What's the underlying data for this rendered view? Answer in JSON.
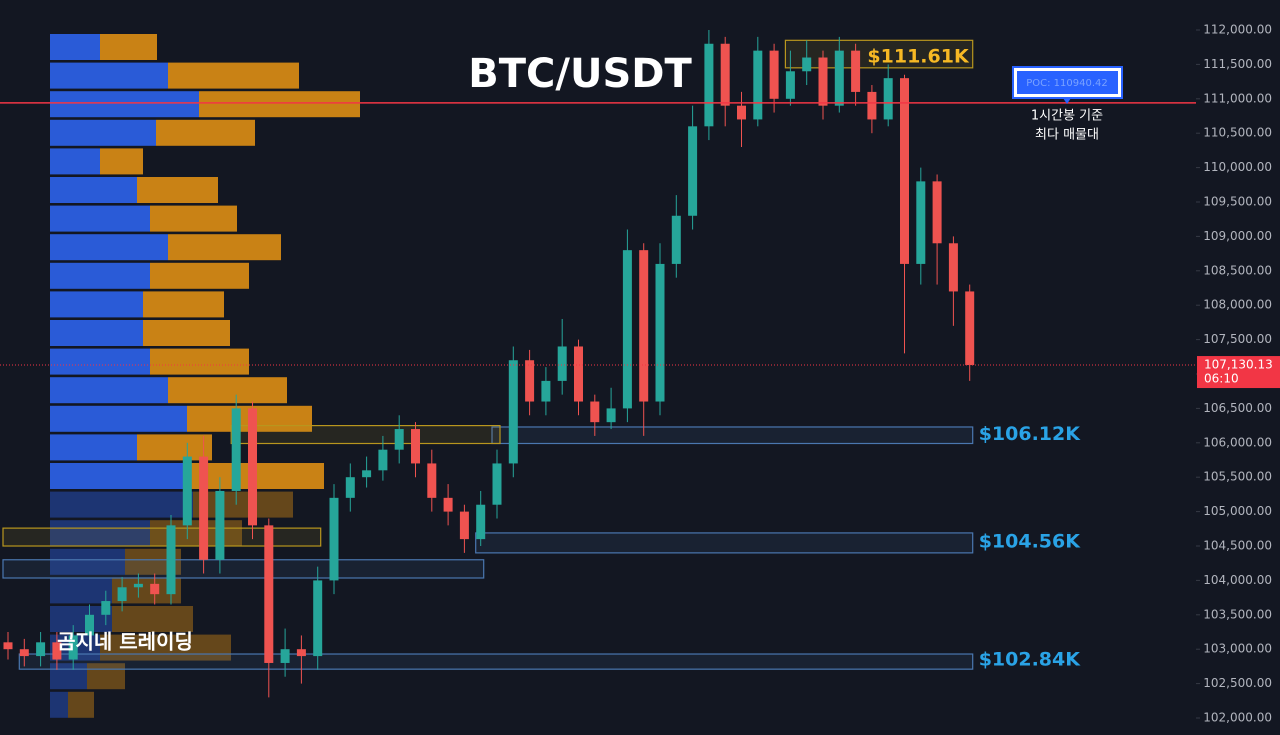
{
  "chart_data": {
    "type": "candlestick",
    "title": "BTC/USDT",
    "watermark": "곰지네 트레이딩",
    "ylim": [
      101753,
      112436
    ],
    "yticks": [
      {
        "value": 102000,
        "label": "102,000.00"
      },
      {
        "value": 102500,
        "label": "102,500.00"
      },
      {
        "value": 103000,
        "label": "103,000.00"
      },
      {
        "value": 103500,
        "label": "103,500.00"
      },
      {
        "value": 104000,
        "label": "104,000.00"
      },
      {
        "value": 104500,
        "label": "104,500.00"
      },
      {
        "value": 105000,
        "label": "105,000.00"
      },
      {
        "value": 105500,
        "label": "105,500.00"
      },
      {
        "value": 106000,
        "label": "106,000.00"
      },
      {
        "value": 106500,
        "label": "106,500.00"
      },
      {
        "value": 107000,
        "label": "107,000.00"
      },
      {
        "value": 107500,
        "label": "107,500.00"
      },
      {
        "value": 108000,
        "label": "108,000.00"
      },
      {
        "value": 108500,
        "label": "108,500.00"
      },
      {
        "value": 109000,
        "label": "109,000.00"
      },
      {
        "value": 109500,
        "label": "109,500.00"
      },
      {
        "value": 110000,
        "label": "110,000.00"
      },
      {
        "value": 110500,
        "label": "110,500.00"
      },
      {
        "value": 111000,
        "label": "111,000.00"
      },
      {
        "value": 111500,
        "label": "111,500.00"
      },
      {
        "value": 112000,
        "label": "112,000.00"
      }
    ],
    "up_color": "#26a69a",
    "down_color": "#ef5350",
    "ohlc": {
      "open": [
        103100,
        103000,
        102900,
        103100,
        102850,
        103200,
        103500,
        103700,
        103900,
        103950,
        103800,
        104800,
        105800,
        104300,
        105300,
        106500,
        104800,
        102800,
        103000,
        102900,
        104000,
        105200,
        105500,
        105600,
        105900,
        106200,
        105700,
        105200,
        105000,
        104600,
        105100,
        105700,
        107200,
        106600,
        106900,
        107400,
        106600,
        106300,
        106500,
        108800,
        106600,
        108600,
        109300,
        110600,
        111800,
        110900,
        110700,
        111700,
        111000,
        111400,
        111600,
        110900,
        111700,
        111100,
        110700,
        111300,
        108600,
        109800,
        108900,
        108200
      ],
      "high": [
        103250,
        103150,
        103250,
        103250,
        103350,
        103650,
        103850,
        104050,
        104100,
        104100,
        104950,
        106000,
        106100,
        105500,
        106700,
        106600,
        104900,
        103300,
        103200,
        104200,
        105400,
        105700,
        105800,
        106100,
        106400,
        106300,
        105900,
        105400,
        105100,
        105300,
        105900,
        107400,
        107350,
        107100,
        107800,
        107500,
        106700,
        106800,
        109100,
        108900,
        108900,
        109600,
        110900,
        112000,
        111900,
        111100,
        111900,
        111800,
        111700,
        111850,
        111700,
        111900,
        111800,
        111200,
        111500,
        111350,
        110000,
        109900,
        109000,
        108300
      ],
      "low": [
        102850,
        102750,
        102750,
        102700,
        102700,
        103050,
        103350,
        103550,
        103750,
        103650,
        103650,
        104600,
        104100,
        104100,
        105100,
        104600,
        102300,
        102600,
        102500,
        102700,
        103800,
        105000,
        105350,
        105450,
        105700,
        105500,
        105000,
        104800,
        104400,
        104500,
        104900,
        105500,
        106400,
        106400,
        106700,
        106400,
        106100,
        106200,
        106300,
        106100,
        106400,
        108400,
        109100,
        110400,
        110600,
        110300,
        110600,
        110800,
        110900,
        111200,
        110700,
        110800,
        110900,
        110500,
        110600,
        107300,
        108300,
        108300,
        107700,
        106900
      ],
      "close": [
        103000,
        102900,
        103100,
        102850,
        103200,
        103500,
        103700,
        103900,
        103950,
        103800,
        104800,
        105800,
        104300,
        105300,
        106500,
        104800,
        102800,
        103000,
        102900,
        104000,
        105200,
        105500,
        105600,
        105900,
        106200,
        105700,
        105200,
        105000,
        104600,
        105100,
        105700,
        107200,
        106600,
        106900,
        107400,
        106600,
        106300,
        106500,
        108800,
        106600,
        108600,
        109300,
        110600,
        111800,
        110900,
        110700,
        111700,
        111000,
        111400,
        111600,
        110900,
        111700,
        111100,
        110700,
        111300,
        108600,
        109800,
        108900,
        108200,
        107130.13
      ]
    },
    "poc": {
      "value": 110940.42,
      "label": "POC: 110940.42",
      "color": "#f23645",
      "note": [
        "1시간봉 기준",
        "최다 매물대"
      ]
    },
    "last_price": {
      "value": 107130.13,
      "label": "107,130.13",
      "countdown": "06:10",
      "color": "#f23645"
    },
    "zones": [
      {
        "label": "$111.61K",
        "level": 111610,
        "low": 111450,
        "high": 111850,
        "from": 48,
        "to": 59,
        "color": "#b8961e",
        "label_color": "#f7b924"
      },
      {
        "label": "$106.12K",
        "level": 106120,
        "low": 105990,
        "high": 106230,
        "from": 30,
        "to": 59,
        "color": "#4a77b0",
        "label_color": "#2aa3e6"
      },
      {
        "label": "$104.56K",
        "level": 104560,
        "low": 104400,
        "high": 104690,
        "from": 29,
        "to": 59,
        "color": "#4a77b0",
        "label_color": "#2aa3e6"
      },
      {
        "label": "$102.84K",
        "level": 102840,
        "low": 102710,
        "high": 102930,
        "from": 1,
        "to": 59,
        "color": "#4a77b0",
        "label_color": "#2aa3e6"
      },
      {
        "low": 105990,
        "high": 106250,
        "from": 14,
        "to": 30,
        "color": "#b8961e"
      },
      {
        "low": 104500,
        "high": 104760,
        "from": 0,
        "to": 19,
        "color": "#b8961e"
      },
      {
        "low": 104035,
        "high": 104300,
        "from": 0,
        "to": 29,
        "color": "#4a77b0"
      }
    ],
    "volume_profile": {
      "xlim": [
        0,
        400
      ],
      "buy_color": "#2a5bd7",
      "sell_color": "#c98215",
      "buy": [
        50,
        118,
        149,
        106,
        50,
        87,
        100,
        118,
        100,
        93,
        93,
        100,
        118,
        137,
        87,
        137,
        143,
        100,
        75,
        62,
        62,
        50,
        37,
        18
      ],
      "sell": [
        57,
        131,
        161,
        99,
        43,
        81,
        87,
        113,
        99,
        81,
        87,
        99,
        119,
        125,
        75,
        137,
        100,
        92,
        56,
        69,
        81,
        131,
        38,
        26
      ]
    }
  }
}
